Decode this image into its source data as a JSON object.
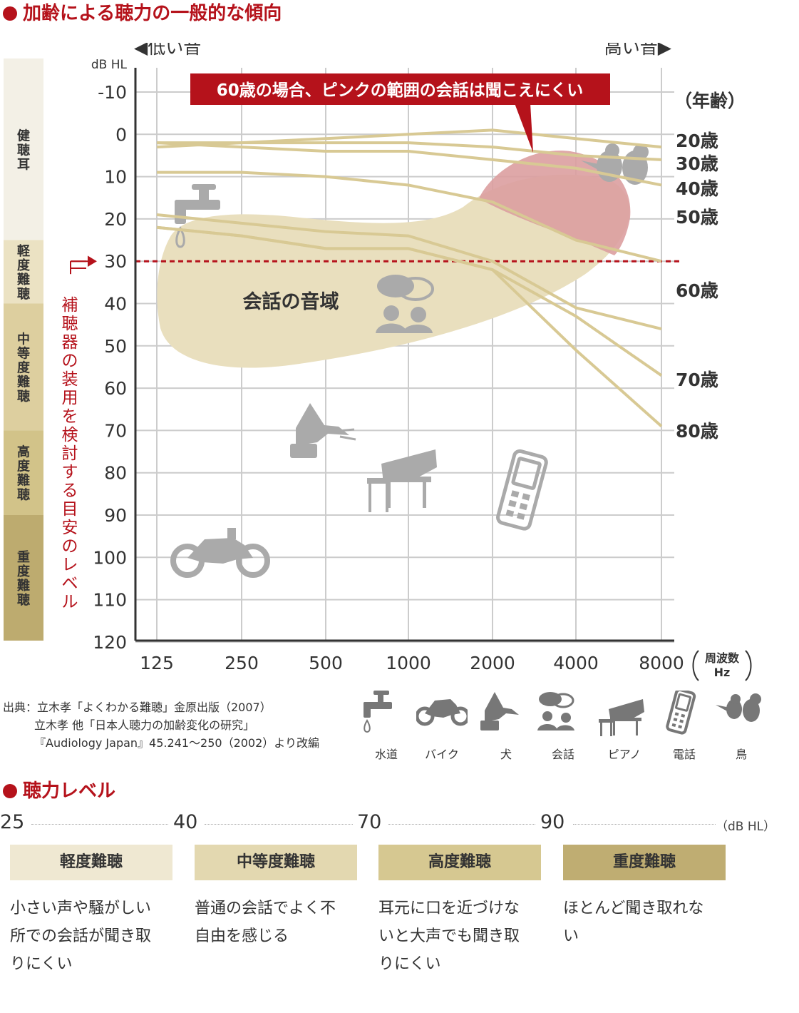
{
  "title": "加齢による聴力の一般的な傾向",
  "chart_data": {
    "type": "line",
    "y_unit": "dB HL",
    "x_unit": "周波数\nHz",
    "x_categories": [
      "125",
      "250",
      "500",
      "1000",
      "2000",
      "4000",
      "8000"
    ],
    "y_ticks": [
      "-10",
      "0",
      "10",
      "20",
      "30",
      "40",
      "50",
      "60",
      "70",
      "80",
      "90",
      "100",
      "110",
      "120"
    ],
    "ylim": [
      -10,
      120
    ],
    "y_reversed": true,
    "low_label": "◀低い音",
    "high_label": "高い音▶",
    "legend_title": "（年齢）",
    "series": [
      {
        "name": "20歳",
        "values": [
          3,
          2,
          1,
          0,
          -1,
          1,
          3
        ]
      },
      {
        "name": "30歳",
        "values": [
          2,
          2,
          2,
          2,
          3,
          5,
          6
        ]
      },
      {
        "name": "40歳",
        "values": [
          2,
          3,
          4,
          4,
          6,
          8,
          12
        ]
      },
      {
        "name": "50歳",
        "values": [
          9,
          9,
          10,
          12,
          16,
          25,
          30
        ]
      },
      {
        "name": "60歳",
        "values": [
          19,
          21,
          23,
          24,
          30,
          41,
          46
        ]
      },
      {
        "name": "70歳",
        "values": [
          22,
          24,
          27,
          27,
          32,
          43,
          57
        ]
      },
      {
        "name": "80歳",
        "values": [
          22,
          24,
          27,
          27,
          32,
          51,
          69
        ]
      }
    ],
    "threshold": {
      "value": 30,
      "label": "補聴器の装用を検討する目安のレベル"
    },
    "conversation_label": "会話の音域",
    "callout": "60歳の場合、ピンクの範囲の会話は聞こえにくい",
    "severity_bands": [
      {
        "label": "健聴耳",
        "from": -10,
        "to": 25,
        "color": "#f3f0e6"
      },
      {
        "label": "軽度難聴",
        "from": 25,
        "to": 40,
        "color": "#ebe2c3"
      },
      {
        "label": "中等度難聴",
        "from": 40,
        "to": 70,
        "color": "#ddcf9f"
      },
      {
        "label": "高度難聴",
        "from": 70,
        "to": 90,
        "color": "#d2c389"
      },
      {
        "label": "重度難聴",
        "from": 90,
        "to": 120,
        "color": "#bdab6f"
      }
    ],
    "colors": {
      "line": "#d8c994",
      "grid": "#cccccc",
      "speech": "#e9dfbe",
      "pink": "#dc9ea0",
      "accent": "#b5121b",
      "icon": "#aaaaaa"
    }
  },
  "source": {
    "line1": "出典：立木孝「よくわかる難聴」金原出版（2007）",
    "line2": "立木孝 他「日本人聴力の加齢変化の研究」",
    "line3": "『Audiology Japan』45.241〜250（2002）より改編"
  },
  "legend_icons": [
    {
      "icon": "faucet-icon",
      "label": "水道"
    },
    {
      "icon": "motorcycle-icon",
      "label": "バイク"
    },
    {
      "icon": "dog-icon",
      "label": "犬"
    },
    {
      "icon": "conversation-icon",
      "label": "会話"
    },
    {
      "icon": "piano-icon",
      "label": "ピアノ"
    },
    {
      "icon": "phone-icon",
      "label": "電話"
    },
    {
      "icon": "bird-icon",
      "label": "鳥"
    }
  ],
  "hearing_levels": {
    "title": "聴力レベル",
    "scale": [
      "25",
      "40",
      "70",
      "90"
    ],
    "unit": "（dB HL）",
    "levels": [
      {
        "name": "軽度難聴",
        "desc": [
          "小さい声や騒がしい",
          "所での会話が聞き取",
          "りにくい"
        ],
        "color": "#efe8d2"
      },
      {
        "name": "中等度難聴",
        "desc": [
          "普通の会話でよく不",
          "自由を感じる"
        ],
        "color": "#e3d8b0"
      },
      {
        "name": "高度難聴",
        "desc": [
          "耳元に口を近づけな",
          "いと大声でも聞き取",
          "りにくい"
        ],
        "color": "#d6c891"
      },
      {
        "name": "重度難聴",
        "desc": [
          "ほとんど聞き取れな",
          "い"
        ],
        "color": "#bfad72"
      }
    ]
  }
}
